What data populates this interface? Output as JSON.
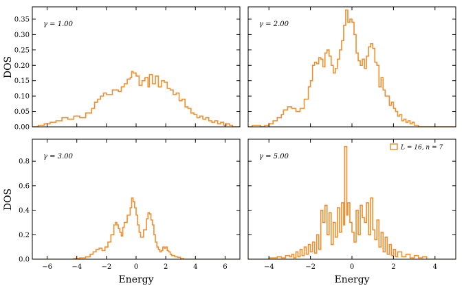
{
  "colors": {
    "line": "#f28e2b",
    "axis": "#000000"
  },
  "shared": {
    "xlabel": "Energy",
    "ylabel": "DOS"
  },
  "legend": {
    "text": "L = 16,  n = 7"
  },
  "chart_data": [
    {
      "type": "step",
      "annotation": "γ = 1.00",
      "xlim": [
        -7,
        7
      ],
      "ylim": [
        0,
        0.39
      ],
      "xticks": [
        -6,
        -4,
        -2,
        0,
        2,
        4,
        6
      ],
      "yticks": [
        0.0,
        0.05,
        0.1,
        0.15,
        0.2,
        0.25,
        0.3,
        0.35
      ],
      "yticklabels": [
        "0.00",
        "0.05",
        "0.10",
        "0.15",
        "0.20",
        "0.25",
        "0.30",
        "0.35"
      ],
      "xticklabels_visible": false,
      "points": [
        [
          -7,
          0
        ],
        [
          -6.6,
          0.005
        ],
        [
          -6.2,
          0.01
        ],
        [
          -5.8,
          0.015
        ],
        [
          -5.4,
          0.02
        ],
        [
          -5,
          0.03
        ],
        [
          -4.6,
          0.025
        ],
        [
          -4.2,
          0.035
        ],
        [
          -3.8,
          0.03
        ],
        [
          -3.4,
          0.045
        ],
        [
          -3,
          0.06
        ],
        [
          -2.8,
          0.08
        ],
        [
          -2.6,
          0.09
        ],
        [
          -2.4,
          0.1
        ],
        [
          -2.2,
          0.11
        ],
        [
          -2,
          0.105
        ],
        [
          -1.6,
          0.12
        ],
        [
          -1.2,
          0.115
        ],
        [
          -1,
          0.13
        ],
        [
          -0.8,
          0.14
        ],
        [
          -0.6,
          0.155
        ],
        [
          -0.4,
          0.16
        ],
        [
          -0.3,
          0.18
        ],
        [
          -0.2,
          0.175
        ],
        [
          0,
          0.165
        ],
        [
          0.2,
          0.135
        ],
        [
          0.4,
          0.15
        ],
        [
          0.6,
          0.16
        ],
        [
          0.8,
          0.13
        ],
        [
          0.9,
          0.17
        ],
        [
          1.1,
          0.14
        ],
        [
          1.3,
          0.165
        ],
        [
          1.5,
          0.13
        ],
        [
          1.7,
          0.15
        ],
        [
          1.9,
          0.145
        ],
        [
          2.1,
          0.125
        ],
        [
          2.3,
          0.12
        ],
        [
          2.5,
          0.105
        ],
        [
          2.7,
          0.11
        ],
        [
          2.9,
          0.085
        ],
        [
          3.1,
          0.09
        ],
        [
          3.3,
          0.065
        ],
        [
          3.5,
          0.06
        ],
        [
          3.7,
          0.045
        ],
        [
          3.9,
          0.04
        ],
        [
          4.1,
          0.03
        ],
        [
          4.3,
          0.035
        ],
        [
          4.5,
          0.025
        ],
        [
          4.7,
          0.03
        ],
        [
          4.9,
          0.02
        ],
        [
          5.1,
          0.015
        ],
        [
          5.3,
          0.02
        ],
        [
          5.5,
          0.01
        ],
        [
          5.7,
          0.015
        ],
        [
          5.9,
          0.005
        ],
        [
          6.1,
          0.01
        ],
        [
          6.3,
          0.005
        ],
        [
          6.5,
          0
        ],
        [
          7,
          0
        ]
      ]
    },
    {
      "type": "step",
      "annotation": "γ = 2.00",
      "xlim": [
        -5,
        5
      ],
      "ylim": [
        0,
        0.39
      ],
      "xticks": [
        -4,
        -2,
        0,
        2,
        4
      ],
      "yticks": [
        0.0,
        0.05,
        0.1,
        0.15,
        0.2,
        0.25,
        0.3,
        0.35
      ],
      "xticklabels_visible": false,
      "yticklabels_visible": false,
      "points": [
        [
          -5,
          0
        ],
        [
          -4.8,
          0.005
        ],
        [
          -4.4,
          0.0
        ],
        [
          -4.2,
          0.005
        ],
        [
          -4,
          0.01
        ],
        [
          -3.8,
          0.02
        ],
        [
          -3.6,
          0.03
        ],
        [
          -3.4,
          0.04
        ],
        [
          -3.3,
          0.055
        ],
        [
          -3.1,
          0.065
        ],
        [
          -2.9,
          0.06
        ],
        [
          -2.7,
          0.05
        ],
        [
          -2.5,
          0.06
        ],
        [
          -2.3,
          0.09
        ],
        [
          -2.1,
          0.13
        ],
        [
          -2,
          0.15
        ],
        [
          -1.9,
          0.2
        ],
        [
          -1.8,
          0.21
        ],
        [
          -1.7,
          0.205
        ],
        [
          -1.6,
          0.225
        ],
        [
          -1.5,
          0.22
        ],
        [
          -1.4,
          0.195
        ],
        [
          -1.3,
          0.24
        ],
        [
          -1.2,
          0.25
        ],
        [
          -1.1,
          0.23
        ],
        [
          -1,
          0.2
        ],
        [
          -0.9,
          0.175
        ],
        [
          -0.8,
          0.19
        ],
        [
          -0.7,
          0.22
        ],
        [
          -0.6,
          0.25
        ],
        [
          -0.5,
          0.28
        ],
        [
          -0.4,
          0.33
        ],
        [
          -0.3,
          0.38
        ],
        [
          -0.2,
          0.34
        ],
        [
          -0.1,
          0.35
        ],
        [
          0,
          0.34
        ],
        [
          0.1,
          0.3
        ],
        [
          0.2,
          0.24
        ],
        [
          0.3,
          0.215
        ],
        [
          0.4,
          0.2
        ],
        [
          0.5,
          0.22
        ],
        [
          0.6,
          0.19
        ],
        [
          0.7,
          0.23
        ],
        [
          0.8,
          0.26
        ],
        [
          0.9,
          0.27
        ],
        [
          1.0,
          0.255
        ],
        [
          1.1,
          0.21
        ],
        [
          1.2,
          0.2
        ],
        [
          1.3,
          0.13
        ],
        [
          1.4,
          0.16
        ],
        [
          1.5,
          0.12
        ],
        [
          1.6,
          0.1
        ],
        [
          1.7,
          0.1
        ],
        [
          1.8,
          0.07
        ],
        [
          1.9,
          0.08
        ],
        [
          2.0,
          0.06
        ],
        [
          2.1,
          0.05
        ],
        [
          2.2,
          0.035
        ],
        [
          2.3,
          0.04
        ],
        [
          2.4,
          0.02
        ],
        [
          2.5,
          0.025
        ],
        [
          2.6,
          0.015
        ],
        [
          2.7,
          0.02
        ],
        [
          2.8,
          0.01
        ],
        [
          2.9,
          0.015
        ],
        [
          3.0,
          0.005
        ],
        [
          3.2,
          0
        ],
        [
          5,
          0
        ]
      ]
    },
    {
      "type": "step",
      "annotation": "γ = 3.00",
      "xlim": [
        -7,
        7
      ],
      "ylim": [
        0,
        0.98
      ],
      "xticks": [
        -6,
        -4,
        -2,
        0,
        2,
        4,
        6
      ],
      "xticklabels": [
        "−6",
        "−4",
        "−2",
        "0",
        "2",
        "4",
        "6"
      ],
      "yticks": [
        0.0,
        0.2,
        0.4,
        0.6,
        0.8
      ],
      "yticklabels": [
        "0.0",
        "0.2",
        "0.4",
        "0.6",
        "0.8"
      ],
      "points": [
        [
          -7,
          0
        ],
        [
          -4.2,
          0.005
        ],
        [
          -3.8,
          0.01
        ],
        [
          -3.4,
          0.02
        ],
        [
          -3.1,
          0.04
        ],
        [
          -2.9,
          0.06
        ],
        [
          -2.7,
          0.08
        ],
        [
          -2.5,
          0.09
        ],
        [
          -2.3,
          0.07
        ],
        [
          -2.1,
          0.1
        ],
        [
          -1.9,
          0.14
        ],
        [
          -1.7,
          0.2
        ],
        [
          -1.5,
          0.28
        ],
        [
          -1.4,
          0.3
        ],
        [
          -1.3,
          0.28
        ],
        [
          -1.2,
          0.25
        ],
        [
          -1.1,
          0.22
        ],
        [
          -1.0,
          0.19
        ],
        [
          -0.9,
          0.26
        ],
        [
          -0.8,
          0.3
        ],
        [
          -0.6,
          0.36
        ],
        [
          -0.4,
          0.42
        ],
        [
          -0.3,
          0.5
        ],
        [
          -0.2,
          0.47
        ],
        [
          -0.1,
          0.42
        ],
        [
          0,
          0.36
        ],
        [
          0.1,
          0.28
        ],
        [
          0.2,
          0.22
        ],
        [
          0.3,
          0.18
        ],
        [
          0.5,
          0.24
        ],
        [
          0.7,
          0.33
        ],
        [
          0.8,
          0.38
        ],
        [
          0.9,
          0.37
        ],
        [
          1.0,
          0.32
        ],
        [
          1.1,
          0.28
        ],
        [
          1.2,
          0.2
        ],
        [
          1.3,
          0.14
        ],
        [
          1.4,
          0.1
        ],
        [
          1.5,
          0.08
        ],
        [
          1.6,
          0.06
        ],
        [
          1.7,
          0.07
        ],
        [
          1.8,
          0.1
        ],
        [
          1.9,
          0.09
        ],
        [
          2.0,
          0.1
        ],
        [
          2.1,
          0.07
        ],
        [
          2.2,
          0.06
        ],
        [
          2.3,
          0.04
        ],
        [
          2.4,
          0.03
        ],
        [
          2.6,
          0.02
        ],
        [
          2.8,
          0.015
        ],
        [
          3.0,
          0.005
        ],
        [
          3.2,
          0
        ],
        [
          7,
          0
        ]
      ]
    },
    {
      "type": "step",
      "annotation": "γ = 5.00",
      "xlim": [
        -5,
        5
      ],
      "ylim": [
        0,
        0.98
      ],
      "xticks": [
        -4,
        -2,
        0,
        2,
        4
      ],
      "xticklabels": [
        "−4",
        "−2",
        "0",
        "2",
        "4"
      ],
      "yticks": [
        0.0,
        0.2,
        0.4,
        0.6,
        0.8
      ],
      "yticklabels_visible": false,
      "legend": true,
      "points": [
        [
          -5,
          0
        ],
        [
          -4.0,
          0.01
        ],
        [
          -3.6,
          0.02
        ],
        [
          -3.4,
          0.01
        ],
        [
          -3.2,
          0.03
        ],
        [
          -3.0,
          0.02
        ],
        [
          -2.9,
          0.04
        ],
        [
          -2.8,
          0.01
        ],
        [
          -2.7,
          0.06
        ],
        [
          -2.6,
          0.02
        ],
        [
          -2.5,
          0.08
        ],
        [
          -2.4,
          0.03
        ],
        [
          -2.3,
          0.1
        ],
        [
          -2.2,
          0.04
        ],
        [
          -2.1,
          0.12
        ],
        [
          -2.0,
          0.06
        ],
        [
          -1.9,
          0.14
        ],
        [
          -1.8,
          0.05
        ],
        [
          -1.7,
          0.2
        ],
        [
          -1.6,
          0.08
        ],
        [
          -1.5,
          0.4
        ],
        [
          -1.4,
          0.3
        ],
        [
          -1.3,
          0.44
        ],
        [
          -1.2,
          0.2
        ],
        [
          -1.1,
          0.38
        ],
        [
          -1.0,
          0.12
        ],
        [
          -0.9,
          0.3
        ],
        [
          -0.8,
          0.18
        ],
        [
          -0.7,
          0.42
        ],
        [
          -0.6,
          0.22
        ],
        [
          -0.5,
          0.46
        ],
        [
          -0.4,
          0.28
        ],
        [
          -0.35,
          0.92
        ],
        [
          -0.25,
          0.36
        ],
        [
          -0.2,
          0.46
        ],
        [
          -0.1,
          0.3
        ],
        [
          0.0,
          0.22
        ],
        [
          0.1,
          0.14
        ],
        [
          0.2,
          0.4
        ],
        [
          0.3,
          0.2
        ],
        [
          0.4,
          0.44
        ],
        [
          0.5,
          0.34
        ],
        [
          0.6,
          0.3
        ],
        [
          0.7,
          0.46
        ],
        [
          0.8,
          0.2
        ],
        [
          0.9,
          0.5
        ],
        [
          1.0,
          0.24
        ],
        [
          1.1,
          0.16
        ],
        [
          1.2,
          0.32
        ],
        [
          1.3,
          0.1
        ],
        [
          1.4,
          0.22
        ],
        [
          1.5,
          0.06
        ],
        [
          1.6,
          0.18
        ],
        [
          1.7,
          0.04
        ],
        [
          1.8,
          0.12
        ],
        [
          1.9,
          0.03
        ],
        [
          2.0,
          0.08
        ],
        [
          2.1,
          0.02
        ],
        [
          2.2,
          0.06
        ],
        [
          2.4,
          0.02
        ],
        [
          2.6,
          0.04
        ],
        [
          2.8,
          0.01
        ],
        [
          3.0,
          0.03
        ],
        [
          3.2,
          0.01
        ],
        [
          3.4,
          0.02
        ],
        [
          3.6,
          0
        ],
        [
          5,
          0
        ]
      ]
    }
  ]
}
